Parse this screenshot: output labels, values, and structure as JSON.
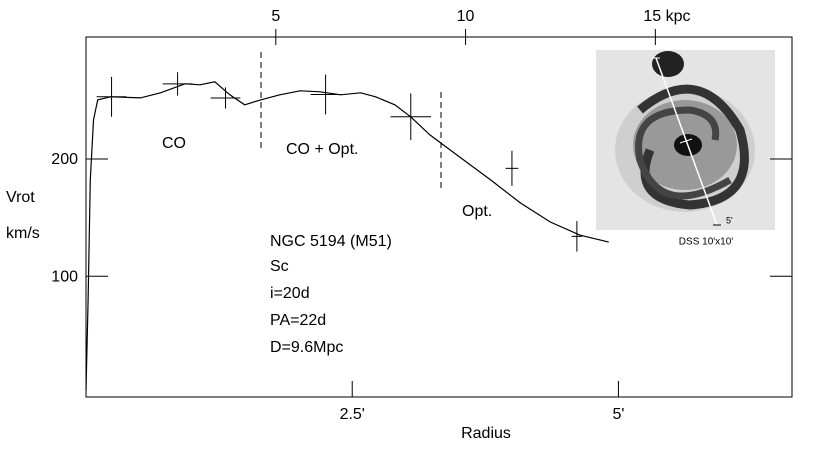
{
  "chart_data": {
    "type": "line",
    "x_label": "Radius",
    "y_label": "Vrot",
    "y_unit": "km/s",
    "xlim": [
      0,
      6.63
    ],
    "xticks": [
      {
        "value": 2.5,
        "label": "2.5'"
      },
      {
        "value": 5,
        "label": "5'"
      }
    ],
    "x2lim": [
      0,
      18.6
    ],
    "x2ticks": [
      5,
      10,
      {
        "value": 15,
        "label": "15 kpc"
      }
    ],
    "ylim": [
      -3,
      304
    ],
    "yticks": [
      100,
      200
    ],
    "curve": {
      "color": "#000",
      "x": [
        0,
        0.02,
        0.04,
        0.07,
        0.11,
        0.23,
        0.51,
        0.7,
        0.93,
        1.07,
        1.21,
        1.35,
        1.49,
        1.64,
        1.82,
        2.01,
        2.2,
        2.39,
        2.58,
        2.72,
        2.9,
        3.05,
        3.23,
        3.52,
        3.8,
        4.08,
        4.36,
        4.64,
        4.91
      ],
      "values": [
        2.6,
        79.5,
        182.1,
        233.3,
        250.4,
        253,
        252.1,
        256.4,
        264.1,
        263.2,
        265.8,
        254.7,
        246.2,
        250.4,
        254.7,
        258.1,
        257.3,
        254.7,
        256.4,
        253,
        246.2,
        235.9,
        220.5,
        200.9,
        182.1,
        162.4,
        146.2,
        135,
        129.1
      ]
    },
    "points": {
      "color": "#000",
      "x": [
        0.24,
        0.86,
        1.31,
        2.25,
        3.05,
        4.0,
        4.61
      ],
      "values": [
        253,
        264,
        252,
        255,
        236,
        192,
        134
      ],
      "yerr": [
        17,
        10,
        9,
        17,
        20,
        15,
        13
      ],
      "xerr": [
        0.14,
        0.14,
        0.14,
        0.14,
        0.19,
        0.06,
        0.05
      ]
    },
    "annotations": [
      "CO",
      "CO + Opt.",
      "Opt.",
      "NGC 5194 (M51)",
      "Sc",
      "i=20d",
      "PA=22d",
      "D=9.6Mpc"
    ],
    "inset_caption": "DSS 10'x10'",
    "inset_scale": "5'"
  }
}
